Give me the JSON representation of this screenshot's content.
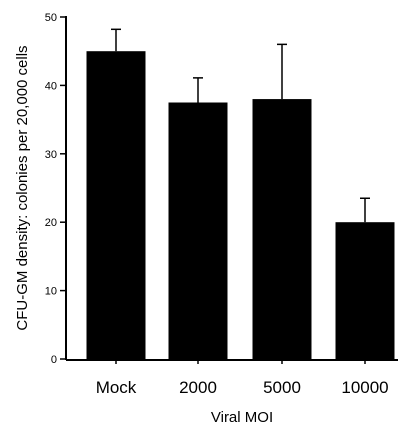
{
  "chart_data": {
    "type": "bar",
    "title": "",
    "xlabel": "Viral MOI",
    "ylabel": "CFU-GM density: colonies per 20,000 cells",
    "categories": [
      "Mock",
      "2000",
      "5000",
      "10000"
    ],
    "values": [
      45,
      37.5,
      38,
      20
    ],
    "errors": [
      3.2,
      3.6,
      8,
      3.5
    ],
    "ylim": [
      0,
      50
    ],
    "yticks": [
      0,
      10,
      20,
      30,
      40,
      50
    ],
    "grid": false,
    "legend": "none",
    "colors": {
      "bar": "#000000",
      "axis": "#000000",
      "background": "#ffffff"
    }
  }
}
